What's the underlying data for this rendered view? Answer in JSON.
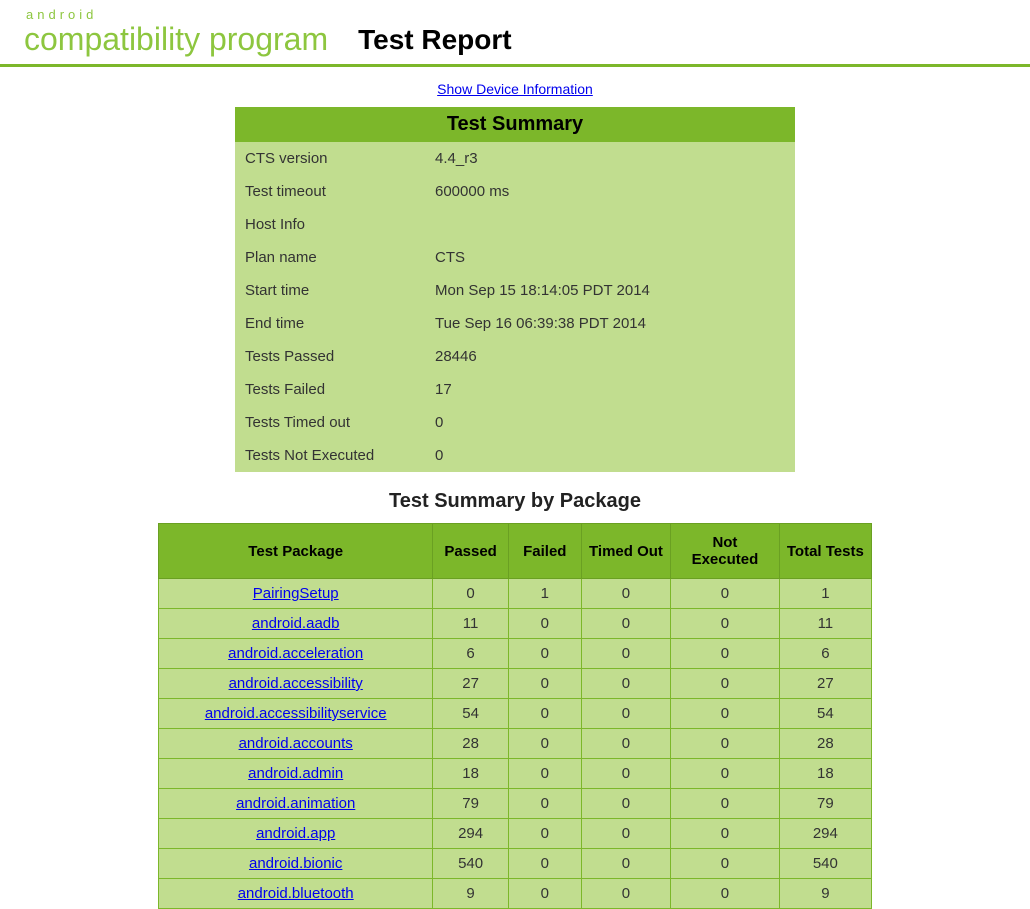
{
  "colors": {
    "brand_green": "#8dc63f",
    "header_green": "#7cb72a",
    "row_green": "#c1dd8f",
    "link_blue": "#0000ee",
    "text": "#222222",
    "white": "#ffffff"
  },
  "header": {
    "logo_top": "android",
    "logo_bottom": "compatibility program",
    "title": "Test Report"
  },
  "links": {
    "show_device_info": "Show Device Information"
  },
  "summary": {
    "heading": "Test Summary",
    "rows": [
      {
        "label": "CTS version",
        "value": "4.4_r3"
      },
      {
        "label": "Test timeout",
        "value": "600000 ms"
      },
      {
        "label": "Host Info",
        "value": ""
      },
      {
        "label": "Plan name",
        "value": "CTS"
      },
      {
        "label": "Start time",
        "value": "Mon Sep 15 18:14:05 PDT 2014"
      },
      {
        "label": "End time",
        "value": "Tue Sep 16 06:39:38 PDT 2014"
      },
      {
        "label": "Tests Passed",
        "value": "28446"
      },
      {
        "label": "Tests Failed",
        "value": "17"
      },
      {
        "label": "Tests Timed out",
        "value": "0"
      },
      {
        "label": "Tests Not Executed",
        "value": "0"
      }
    ]
  },
  "by_package": {
    "heading": "Test Summary by Package",
    "columns": [
      "Test Package",
      "Passed",
      "Failed",
      "Timed Out",
      "Not Executed",
      "Total Tests"
    ],
    "rows": [
      {
        "name": "PairingSetup",
        "passed": "0",
        "failed": "1",
        "timed_out": "0",
        "not_executed": "0",
        "total": "1"
      },
      {
        "name": "android.aadb",
        "passed": "11",
        "failed": "0",
        "timed_out": "0",
        "not_executed": "0",
        "total": "11"
      },
      {
        "name": "android.acceleration",
        "passed": "6",
        "failed": "0",
        "timed_out": "0",
        "not_executed": "0",
        "total": "6"
      },
      {
        "name": "android.accessibility",
        "passed": "27",
        "failed": "0",
        "timed_out": "0",
        "not_executed": "0",
        "total": "27"
      },
      {
        "name": "android.accessibilityservice",
        "passed": "54",
        "failed": "0",
        "timed_out": "0",
        "not_executed": "0",
        "total": "54"
      },
      {
        "name": "android.accounts",
        "passed": "28",
        "failed": "0",
        "timed_out": "0",
        "not_executed": "0",
        "total": "28"
      },
      {
        "name": "android.admin",
        "passed": "18",
        "failed": "0",
        "timed_out": "0",
        "not_executed": "0",
        "total": "18"
      },
      {
        "name": "android.animation",
        "passed": "79",
        "failed": "0",
        "timed_out": "0",
        "not_executed": "0",
        "total": "79"
      },
      {
        "name": "android.app",
        "passed": "294",
        "failed": "0",
        "timed_out": "0",
        "not_executed": "0",
        "total": "294"
      },
      {
        "name": "android.bionic",
        "passed": "540",
        "failed": "0",
        "timed_out": "0",
        "not_executed": "0",
        "total": "540"
      },
      {
        "name": "android.bluetooth",
        "passed": "9",
        "failed": "0",
        "timed_out": "0",
        "not_executed": "0",
        "total": "9"
      }
    ]
  }
}
